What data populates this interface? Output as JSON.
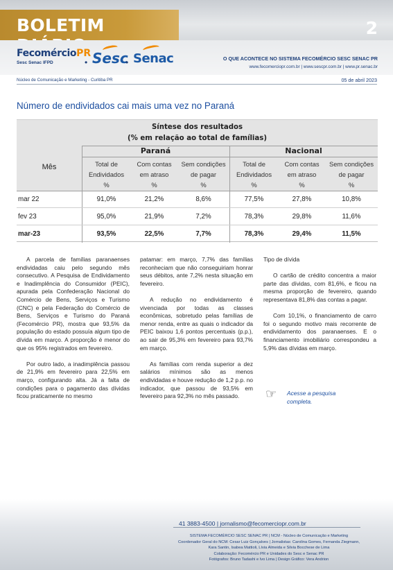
{
  "header": {
    "title": "BOLETIM DIÁRIO",
    "page_number": "2",
    "fecomercio_logo": "Fecomércio",
    "fecomercio_pr": "PR",
    "fecomercio_sub": "Sesc  Senac  IFPD",
    "sesc_logo": "Sesc",
    "senac_logo": "Senac",
    "tagline": "O QUE ACONTECE NO SISTEMA FECOMÉRCIO SESC SENAC PR",
    "websites": "www.fecomerciopr.com.br | www.sescpr.com.br | www.pr.senac.br",
    "dept": "Núcleo de Comunicação e Marketing - Curitiba PR",
    "date": "05 de abril 2023"
  },
  "article": {
    "title": "Número de endividados cai mais uma vez no Paraná"
  },
  "table": {
    "title_line1": "Síntese dos resultados",
    "title_line2": "(% em relação ao total de famílias)",
    "group_parana": "Paraná",
    "group_nacional": "Nacional",
    "row_header": "Mês",
    "columns": [
      {
        "l1": "Total de",
        "l2": "Endividados",
        "l3": "%"
      },
      {
        "l1": "Com contas",
        "l2": "em atraso",
        "l3": "%"
      },
      {
        "l1": "Sem condições",
        "l2": "de pagar",
        "l3": "%"
      },
      {
        "l1": "Total de",
        "l2": "Endividados",
        "l3": "%"
      },
      {
        "l1": "Com contas",
        "l2": "em atraso",
        "l3": "%"
      },
      {
        "l1": "Sem condições",
        "l2": "de pagar",
        "l3": "%"
      }
    ],
    "rows": [
      {
        "label": "mar 22",
        "values": [
          "91,0%",
          "21,2%",
          "8,6%",
          "77,5%",
          "27,8%",
          "10,8%"
        ]
      },
      {
        "label": "fev 23",
        "values": [
          "95,0%",
          "21,9%",
          "7,2%",
          "78,3%",
          "29,8%",
          "11,6%"
        ]
      },
      {
        "label": "mar-23",
        "values": [
          "93,5%",
          "22,5%",
          "7,7%",
          "78,3%",
          "29,4%",
          "11,5%"
        ]
      }
    ]
  },
  "body": {
    "col1_p1": "A parcela de famílias paranaenses endividadas caiu pelo segundo mês consecutivo. A Pesquisa de Endividamento e Inadimplência do Consumidor (PEIC), apurada pela Confederação Nacional do Comércio de Bens, Serviços e Turismo (CNC) e pela Federação do Comércio de Bens, Serviços e Turismo do Paraná (Fecomércio PR), mostra que 93,5% da população do estado possuía algum tipo de dívida em março. A proporção é menor do que os 95% registrados em fevereiro.",
    "col1_p2": "Por outro lado, a inadimplência passou de 21,9% em fevereiro para 22,5% em março, configurando alta. Já a falta de condições para o pagamento das dívidas ficou praticamente no mesmo",
    "col2_p1": "patamar: em março, 7,7% das famílias reconheciam que não conseguiriam honrar seus débitos, ante 7,2% nesta situação em fevereiro.",
    "col2_p2": "A redução no endividamento é vivenciada por todas as classes econômicas, sobretudo pelas famílias de menor renda, entre as quais o indicador da PEIC baixou 1,6 pontos percentuais (p.p.), ao sair de 95,3% em fevereiro para 93,7% em março.",
    "col2_p3": "As famílias com renda superior a dez salários mínimos são as menos endividadas e houve redução de 1,2 p.p. no indicador, que passou de 93,5% em fevereiro para 92,3% no mês passado.",
    "col3_h": "Tipo de dívida",
    "col3_p1": "O cartão de crédito concentra a maior parte das dívidas, com 81,6%, e ficou na mesma proporção de fevereiro, quando representava 81,8% das contas a pagar.",
    "col3_p2": "Com 10,1%, o financiamento de carro foi o segundo motivo mais recorrente de endividamento dos paranaenses. E o financiamento imobiliário correspondeu a 5,9% das dívidas em março.",
    "link_line1": "Acesse a pesquisa",
    "link_line2": "completa."
  },
  "footer": {
    "contact": "41 3883-4500  |  jornalismo@fecomerciopr.com.br",
    "credit1": "SISTEMA FECOMÉRCIO SESC SENAC PR  |  NCM - Núcleo de Comunicação e Marketing",
    "credit2": "Coordenador Geral do NCM: Cesar Luiz Gonçalves  |  Jornalistas: Carolina Gomes, Fernanda Ziegmann,",
    "credit3": "Kara Santin, Isabea Mattioli, Lívia Almeida e Silvia Bocchese de Lima",
    "credit4": "Colaboração: Fecomércio PR e Unidades do Sesc e Senac PR",
    "credit5": "Fotógrafos: Bruno Tadashi e Ivo Lima  |  Design Gráfico: Vera Andrion"
  }
}
